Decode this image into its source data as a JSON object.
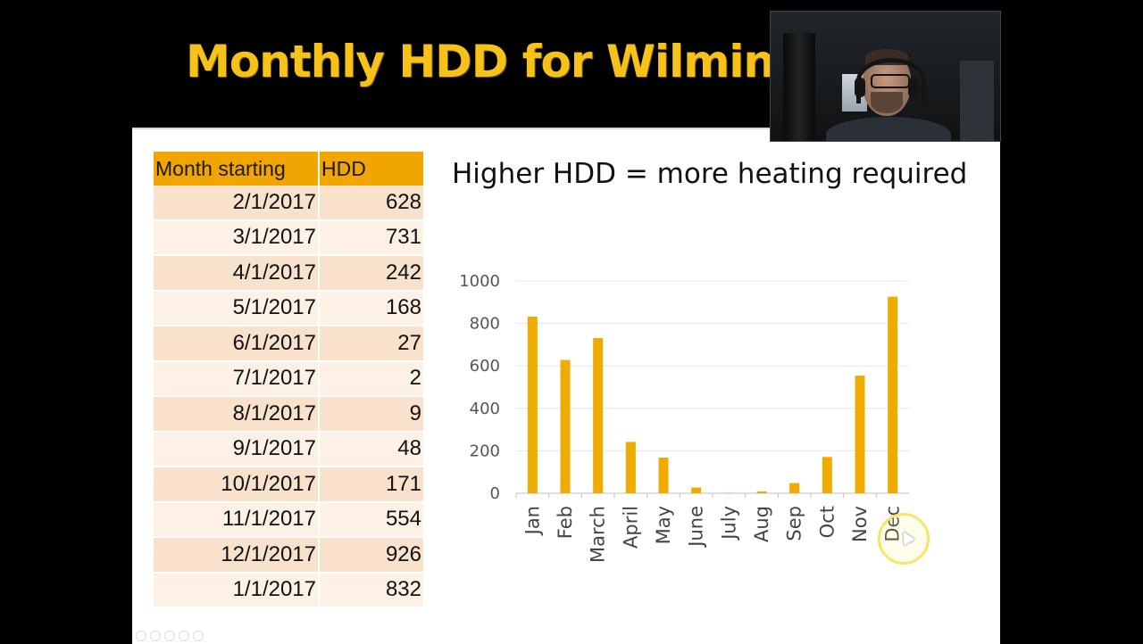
{
  "slide": {
    "title": "Monthly HDD for Wilming",
    "subtitle": "Higher HDD = more heating required"
  },
  "table": {
    "headers": [
      "Month starting",
      "HDD"
    ],
    "rows": [
      [
        "2/1/2017",
        "628"
      ],
      [
        "3/1/2017",
        "731"
      ],
      [
        "4/1/2017",
        "242"
      ],
      [
        "5/1/2017",
        "168"
      ],
      [
        "6/1/2017",
        "27"
      ],
      [
        "7/1/2017",
        "2"
      ],
      [
        "8/1/2017",
        "9"
      ],
      [
        "9/1/2017",
        "48"
      ],
      [
        "10/1/2017",
        "171"
      ],
      [
        "11/1/2017",
        "554"
      ],
      [
        "12/1/2017",
        "926"
      ],
      [
        "1/1/2017",
        "832"
      ]
    ]
  },
  "colors": {
    "title": "#f6c21a",
    "bar": "#f0ab00",
    "header_fill": "#f0a500",
    "row_fill_odd": "#f8e2cb",
    "row_fill_even": "#fdf1e6"
  },
  "chart_data": {
    "type": "bar",
    "categories": [
      "Jan",
      "Feb",
      "March",
      "April",
      "May",
      "June",
      "July",
      "Aug",
      "Sep",
      "Oct",
      "Nov",
      "Dec"
    ],
    "values": [
      832,
      628,
      731,
      242,
      168,
      27,
      2,
      9,
      48,
      171,
      554,
      926
    ],
    "title": "",
    "xlabel": "",
    "ylabel": "",
    "ylim": [
      0,
      1000
    ],
    "yticks": [
      0,
      200,
      400,
      600,
      800,
      1000
    ],
    "grid": true,
    "legend": "none",
    "tick_labels_rotated": true
  }
}
